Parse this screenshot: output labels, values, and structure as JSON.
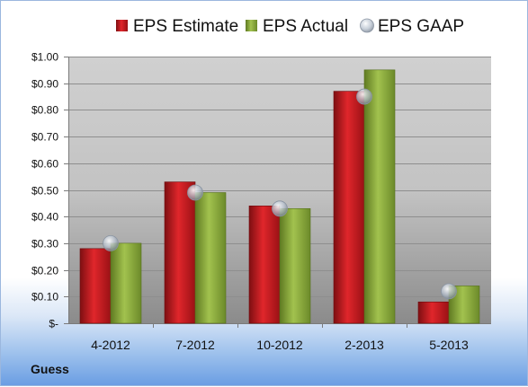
{
  "company": "Guess",
  "chart_data": {
    "type": "bar",
    "categories": [
      "4-2012",
      "7-2012",
      "10-2012",
      "2-2013",
      "5-2013"
    ],
    "series": [
      {
        "name": "EPS Estimate",
        "kind": "bar",
        "color": "#c0171b",
        "values": [
          0.28,
          0.53,
          0.44,
          0.87,
          0.08
        ]
      },
      {
        "name": "EPS Actual",
        "kind": "bar",
        "color": "#86a83a",
        "values": [
          0.3,
          0.49,
          0.43,
          0.95,
          0.14
        ]
      },
      {
        "name": "EPS GAAP",
        "kind": "marker",
        "color": "#a8b4c4",
        "values": [
          0.3,
          0.49,
          0.43,
          0.85,
          0.12
        ]
      }
    ],
    "ylim": [
      0,
      1.0
    ],
    "yticks": [
      {
        "value": 0,
        "label": "$-"
      },
      {
        "value": 0.1,
        "label": "$0.10"
      },
      {
        "value": 0.2,
        "label": "$0.20"
      },
      {
        "value": 0.3,
        "label": "$0.30"
      },
      {
        "value": 0.4,
        "label": "$0.40"
      },
      {
        "value": 0.5,
        "label": "$0.50"
      },
      {
        "value": 0.6,
        "label": "$0.60"
      },
      {
        "value": 0.7,
        "label": "$0.70"
      },
      {
        "value": 0.8,
        "label": "$0.80"
      },
      {
        "value": 0.9,
        "label": "$0.90"
      },
      {
        "value": 1.0,
        "label": "$1.00"
      }
    ],
    "grid": true,
    "legend": "top-center"
  }
}
